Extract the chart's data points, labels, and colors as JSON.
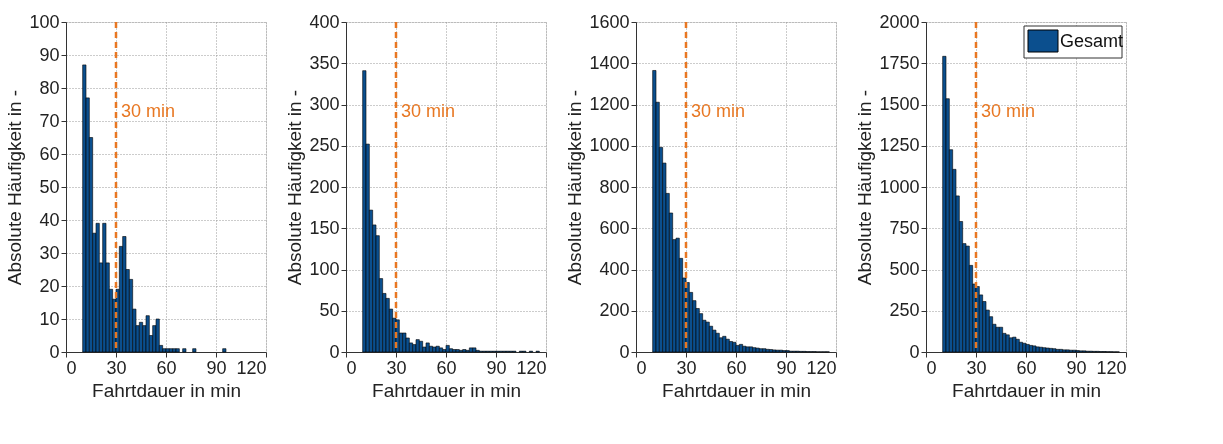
{
  "chart_data": [
    {
      "type": "histogram",
      "xlabel": "Fahrtdauer in min",
      "ylabel": "Absolute Häufigkeit in -",
      "bins": [
        10,
        12,
        14,
        16,
        18,
        20,
        22,
        24,
        26,
        28,
        30,
        32,
        34,
        36,
        38,
        40,
        42,
        44,
        46,
        48,
        50,
        52,
        54,
        56,
        58,
        60,
        62,
        64,
        66,
        68,
        70,
        72,
        74,
        76,
        78,
        80,
        82,
        84,
        86,
        88,
        90,
        92,
        94,
        96
      ],
      "series": [
        {
          "color": "#0b4f8e",
          "values": [
            87,
            77,
            65,
            36,
            39,
            27,
            39,
            27,
            19,
            16,
            19,
            32,
            35,
            25,
            22,
            13,
            8,
            9,
            8,
            11,
            5,
            8,
            10,
            2,
            1,
            1,
            1,
            1,
            1,
            0,
            1,
            0,
            0,
            1,
            0,
            0,
            0,
            0,
            0,
            0,
            0,
            0,
            1
          ]
        }
      ],
      "xlim": [
        0,
        120
      ],
      "xticks": [
        0,
        30,
        60,
        90,
        120
      ],
      "ylim": [
        0,
        100
      ],
      "yticks": [
        0,
        10,
        20,
        30,
        40,
        50,
        60,
        70,
        80,
        90,
        100
      ],
      "grid": true,
      "legend": false,
      "ref_lines": [
        {
          "axis": "x",
          "value": 30,
          "label": "30 min",
          "color": "#e87722",
          "line_style": "dashed"
        }
      ]
    },
    {
      "type": "histogram",
      "xlabel": "Fahrtdauer in min",
      "ylabel": "Absolute Häufigkeit in -",
      "bins": [
        10,
        12,
        14,
        16,
        18,
        20,
        22,
        24,
        26,
        28,
        30,
        32,
        34,
        36,
        38,
        40,
        42,
        44,
        46,
        48,
        50,
        52,
        54,
        56,
        58,
        60,
        62,
        64,
        66,
        68,
        70,
        72,
        74,
        76,
        78,
        80,
        82,
        84,
        86,
        88,
        90,
        92,
        94,
        96,
        98,
        100,
        102,
        104,
        106,
        108,
        110,
        112,
        114,
        116
      ],
      "series": [
        {
          "color": "#0b4f8e",
          "values": [
            341,
            252,
            172,
            154,
            141,
            89,
            71,
            65,
            52,
            41,
            39,
            23,
            23,
            17,
            11,
            9,
            15,
            13,
            6,
            11,
            7,
            6,
            7,
            5,
            3,
            8,
            4,
            3,
            3,
            2,
            3,
            2,
            5,
            5,
            2,
            1,
            1,
            1,
            1,
            1,
            1,
            1,
            1,
            1,
            1,
            1,
            0,
            1,
            1,
            0,
            1,
            0,
            1
          ]
        }
      ],
      "xlim": [
        0,
        120
      ],
      "xticks": [
        0,
        30,
        60,
        90,
        120
      ],
      "ylim": [
        0,
        400
      ],
      "yticks": [
        0,
        50,
        100,
        150,
        200,
        250,
        300,
        350,
        400
      ],
      "grid": true,
      "legend": false,
      "ref_lines": [
        {
          "axis": "x",
          "value": 30,
          "label": "30 min",
          "color": "#e87722",
          "line_style": "dashed"
        }
      ]
    },
    {
      "type": "histogram",
      "xlabel": "Fahrtdauer in min",
      "ylabel": "Absolute Häufigkeit in -",
      "bins": [
        10,
        12,
        14,
        16,
        18,
        20,
        22,
        24,
        26,
        28,
        30,
        32,
        34,
        36,
        38,
        40,
        42,
        44,
        46,
        48,
        50,
        52,
        54,
        56,
        58,
        60,
        62,
        64,
        66,
        68,
        70,
        72,
        74,
        76,
        78,
        80,
        82,
        84,
        86,
        88,
        90,
        92,
        94,
        96,
        98,
        100,
        102,
        104,
        106,
        108,
        110,
        112,
        114,
        116
      ],
      "series": [
        {
          "color": "#0b4f8e",
          "values": [
            1365,
            1211,
            992,
            916,
            769,
            674,
            545,
            552,
            454,
            359,
            337,
            289,
            249,
            211,
            186,
            154,
            145,
            125,
            106,
            91,
            69,
            76,
            62,
            51,
            47,
            32,
            37,
            28,
            25,
            25,
            21,
            19,
            16,
            16,
            13,
            12,
            10,
            9,
            9,
            7,
            7,
            4,
            4,
            4,
            3,
            3,
            2,
            2,
            2,
            1,
            1,
            1,
            1
          ]
        }
      ],
      "xlim": [
        0,
        120
      ],
      "xticks": [
        0,
        30,
        60,
        90,
        120
      ],
      "ylim": [
        0,
        1600
      ],
      "yticks": [
        0,
        200,
        400,
        600,
        800,
        1000,
        1200,
        1400,
        1600
      ],
      "grid": true,
      "legend": false,
      "ref_lines": [
        {
          "axis": "x",
          "value": 30,
          "label": "30 min",
          "color": "#e87722",
          "line_style": "dashed"
        }
      ]
    },
    {
      "type": "histogram",
      "xlabel": "Fahrtdauer in min",
      "ylabel": "Absolute Häufigkeit in -",
      "bins": [
        10,
        12,
        14,
        16,
        18,
        20,
        22,
        24,
        26,
        28,
        30,
        32,
        34,
        36,
        38,
        40,
        42,
        44,
        46,
        48,
        50,
        52,
        54,
        56,
        58,
        60,
        62,
        64,
        66,
        68,
        70,
        72,
        74,
        76,
        78,
        80,
        82,
        84,
        86,
        88,
        90,
        92,
        94,
        96,
        98,
        100,
        102,
        104,
        106,
        108,
        110,
        112,
        114,
        116
      ],
      "series": [
        {
          "name": "Gesamt",
          "color": "#0b4f8e",
          "values": [
            1792,
            1535,
            1226,
            1107,
            946,
            791,
            657,
            642,
            525,
            412,
            397,
            346,
            306,
            254,
            214,
            168,
            150,
            150,
            113,
            104,
            86,
            90,
            77,
            59,
            53,
            46,
            40,
            37,
            31,
            29,
            26,
            24,
            22,
            20,
            16,
            16,
            13,
            13,
            11,
            11,
            9,
            7,
            7,
            5,
            5,
            4,
            4,
            3,
            3,
            2,
            2,
            1,
            1
          ]
        }
      ],
      "xlim": [
        0,
        120
      ],
      "xticks": [
        0,
        30,
        60,
        90,
        120
      ],
      "ylim": [
        0,
        2000
      ],
      "yticks": [
        0,
        250,
        500,
        750,
        1000,
        1250,
        1500,
        1750,
        2000
      ],
      "grid": true,
      "legend": "top right",
      "ref_lines": [
        {
          "axis": "x",
          "value": 30,
          "label": "30 min",
          "color": "#e87722",
          "line_style": "dashed"
        }
      ]
    }
  ]
}
